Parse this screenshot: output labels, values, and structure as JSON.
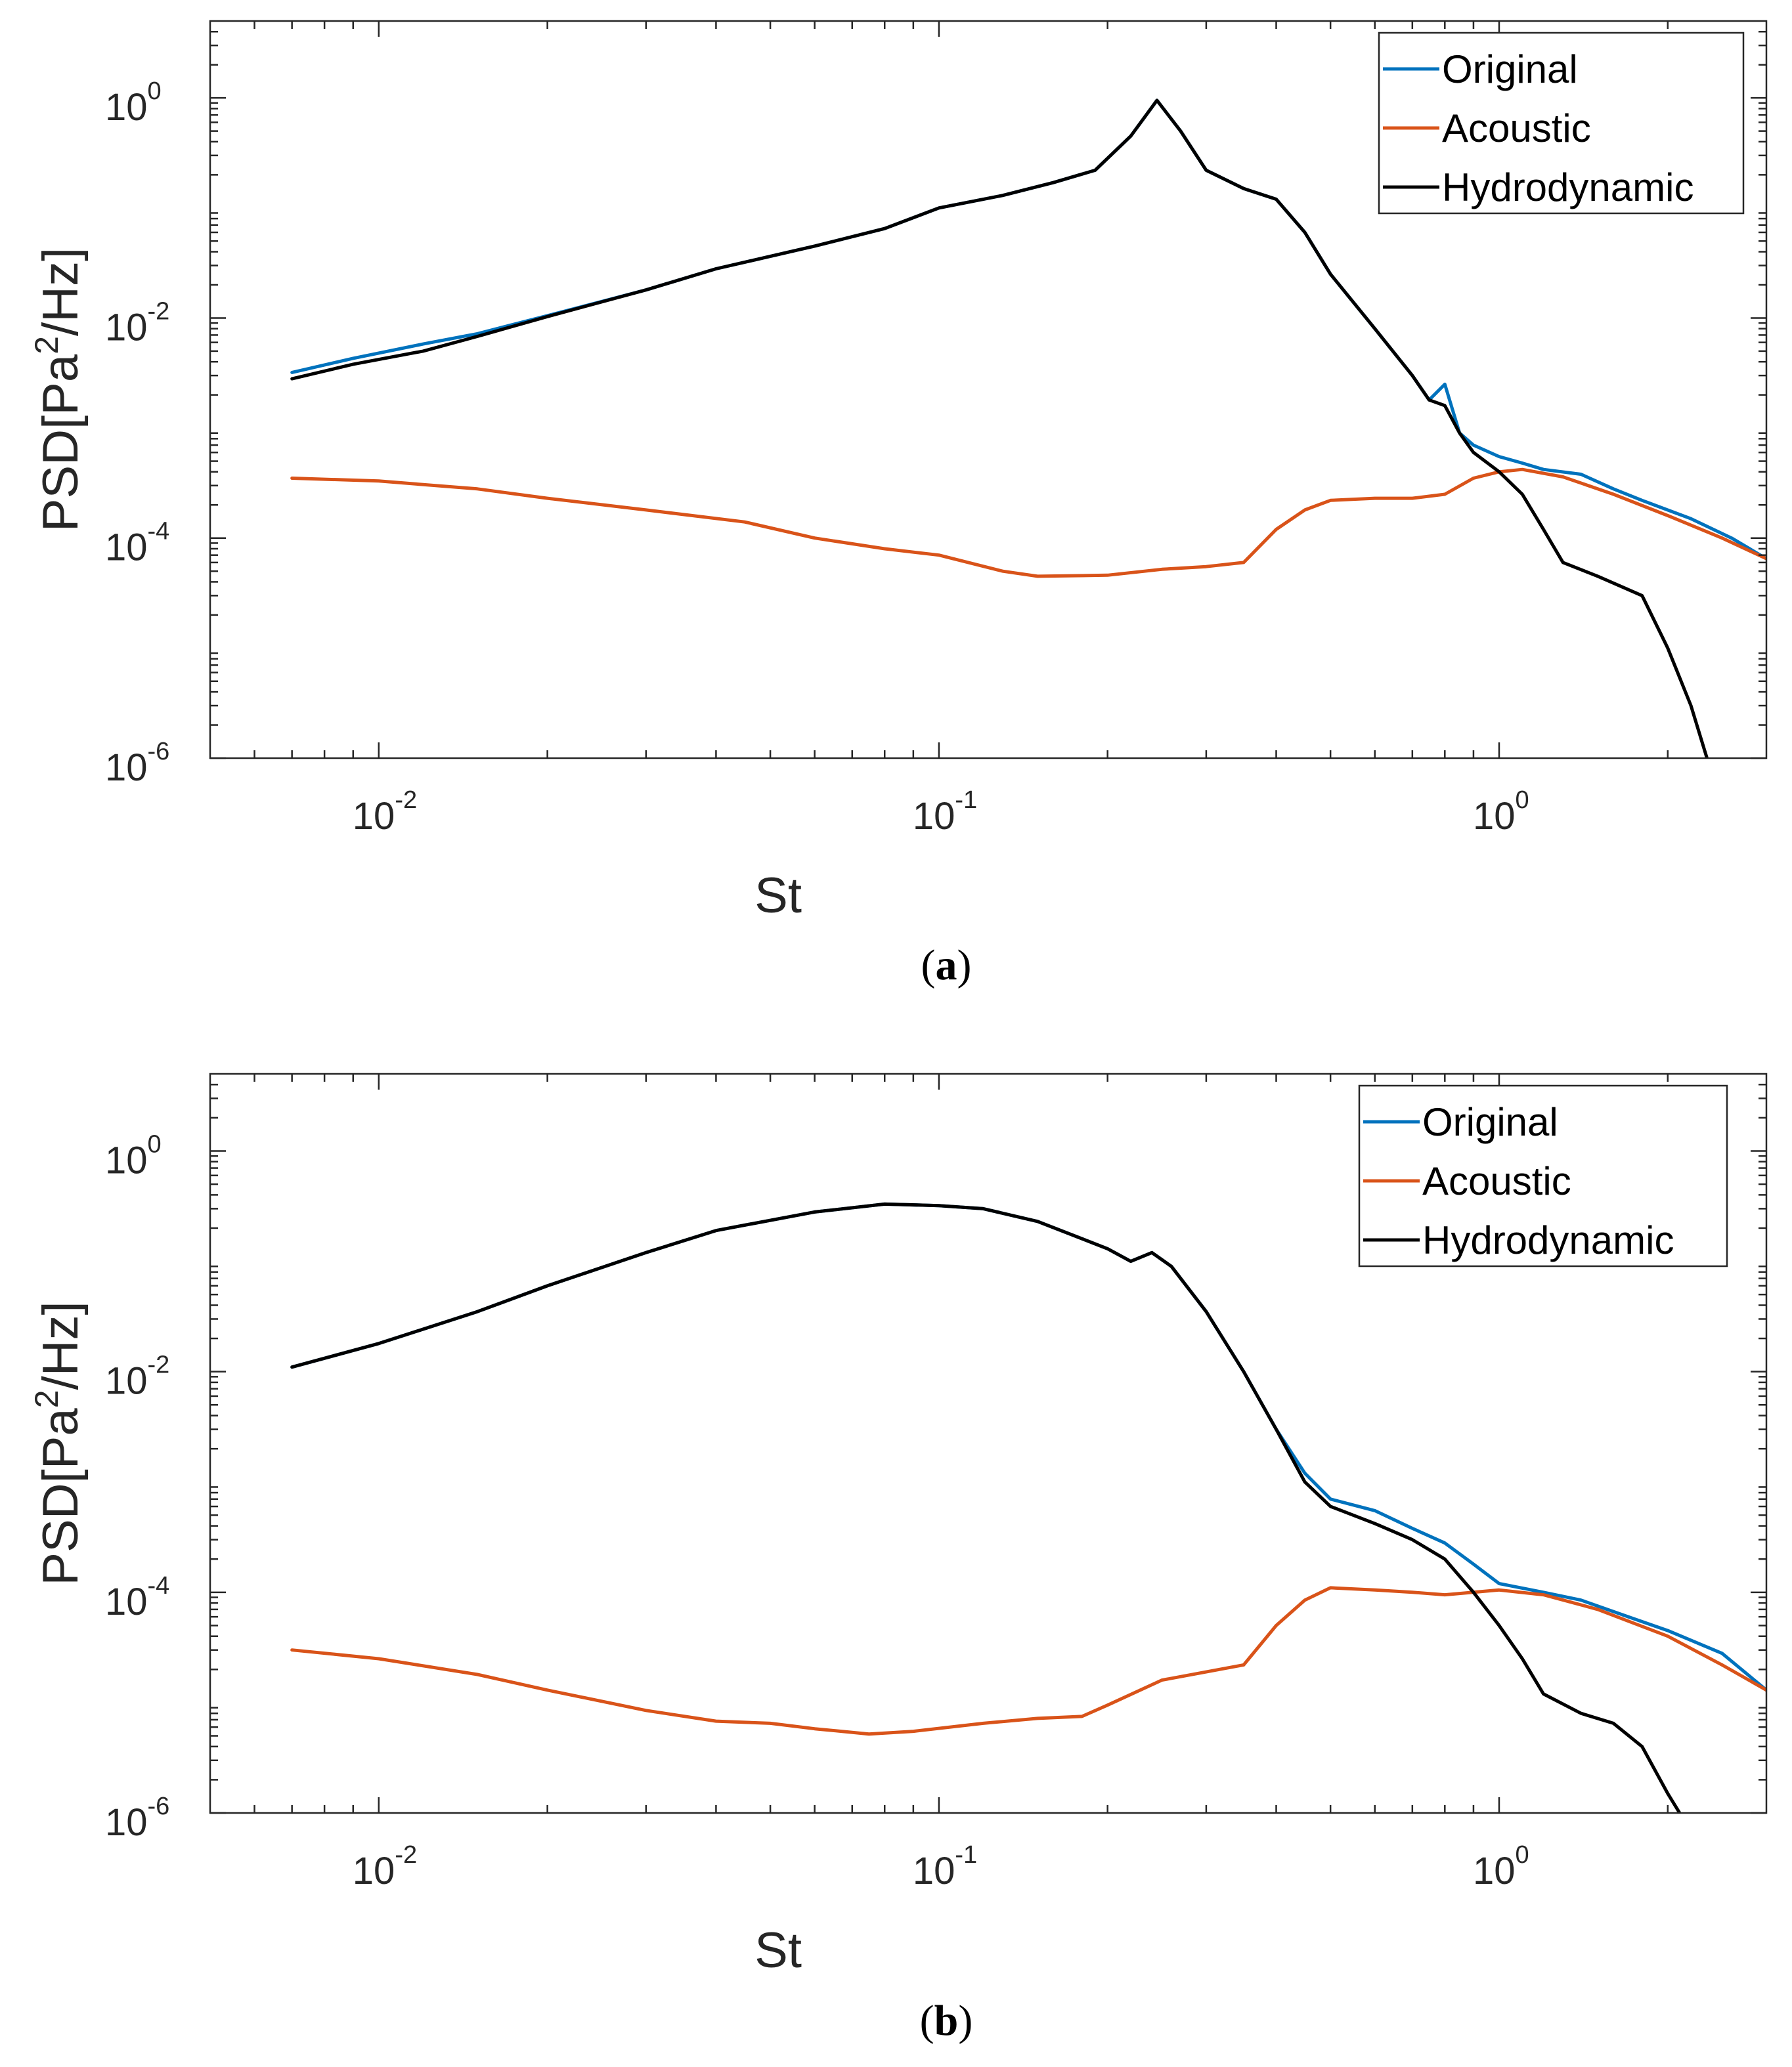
{
  "chart_data": [
    {
      "panel": "a",
      "type": "line",
      "caption_letter": "a",
      "xlabel": "St",
      "ylabel_base": "PSD[Pa",
      "ylabel_sup": "2",
      "ylabel_tail": "/Hz]",
      "xscale": "log",
      "yscale": "log",
      "xlim": [
        0.005,
        3.0
      ],
      "ylim": [
        1e-06,
        5
      ],
      "x_ticks": [
        {
          "value": 0.01,
          "base": "10",
          "exp": "-2"
        },
        {
          "value": 0.1,
          "base": "10",
          "exp": "-1"
        },
        {
          "value": 1,
          "base": "10",
          "exp": "0"
        }
      ],
      "y_ticks": [
        {
          "value": 1e-06,
          "base": "10",
          "exp": "-6"
        },
        {
          "value": 0.0001,
          "base": "10",
          "exp": "-4"
        },
        {
          "value": 0.01,
          "base": "10",
          "exp": "-2"
        },
        {
          "value": 1,
          "base": "10",
          "exp": "0"
        }
      ],
      "legend_position": "top-right",
      "series": [
        {
          "name": "Original",
          "color": "#0072BD",
          "points": [
            [
              0.007,
              0.0032
            ],
            [
              0.009,
              0.0043
            ],
            [
              0.012,
              0.0058
            ],
            [
              0.015,
              0.0072
            ],
            [
              0.02,
              0.0105
            ],
            [
              0.03,
              0.018
            ],
            [
              0.04,
              0.028
            ],
            [
              0.06,
              0.045
            ],
            [
              0.08,
              0.065
            ],
            [
              0.1,
              0.1
            ],
            [
              0.13,
              0.13
            ],
            [
              0.16,
              0.17
            ],
            [
              0.19,
              0.22
            ],
            [
              0.22,
              0.45
            ],
            [
              0.245,
              0.95
            ],
            [
              0.27,
              0.5
            ],
            [
              0.3,
              0.22
            ],
            [
              0.35,
              0.15
            ],
            [
              0.4,
              0.12
            ],
            [
              0.45,
              0.06
            ],
            [
              0.5,
              0.025
            ],
            [
              0.6,
              0.008
            ],
            [
              0.7,
              0.003
            ],
            [
              0.75,
              0.0018
            ],
            [
              0.8,
              0.0025
            ],
            [
              0.85,
              0.0009
            ],
            [
              0.9,
              0.0007
            ],
            [
              1.0,
              0.00055
            ],
            [
              1.1,
              0.00048
            ],
            [
              1.2,
              0.00042
            ],
            [
              1.4,
              0.00038
            ],
            [
              1.6,
              0.00028
            ],
            [
              1.8,
              0.00022
            ],
            [
              2.2,
              0.00015
            ],
            [
              2.6,
              0.0001
            ],
            [
              3.0,
              6.5e-05
            ]
          ]
        },
        {
          "name": "Acoustic",
          "color": "#D95319",
          "points": [
            [
              0.007,
              0.00035
            ],
            [
              0.01,
              0.00033
            ],
            [
              0.015,
              0.00028
            ],
            [
              0.02,
              0.00023
            ],
            [
              0.03,
              0.00018
            ],
            [
              0.045,
              0.00014
            ],
            [
              0.06,
              0.0001
            ],
            [
              0.08,
              8e-05
            ],
            [
              0.1,
              7e-05
            ],
            [
              0.13,
              5e-05
            ],
            [
              0.15,
              4.5e-05
            ],
            [
              0.2,
              4.6e-05
            ],
            [
              0.25,
              5.2e-05
            ],
            [
              0.3,
              5.5e-05
            ],
            [
              0.35,
              6e-05
            ],
            [
              0.4,
              0.00012
            ],
            [
              0.45,
              0.00018
            ],
            [
              0.5,
              0.00022
            ],
            [
              0.6,
              0.00023
            ],
            [
              0.7,
              0.00023
            ],
            [
              0.8,
              0.00025
            ],
            [
              0.9,
              0.00035
            ],
            [
              1.0,
              0.0004
            ],
            [
              1.1,
              0.00042
            ],
            [
              1.3,
              0.00036
            ],
            [
              1.6,
              0.00025
            ],
            [
              2.0,
              0.00016
            ],
            [
              2.5,
              0.0001
            ],
            [
              3.0,
              6.5e-05
            ]
          ]
        },
        {
          "name": "Hydrodynamic",
          "color": "#000000",
          "points": [
            [
              0.007,
              0.0028
            ],
            [
              0.009,
              0.0038
            ],
            [
              0.012,
              0.005
            ],
            [
              0.015,
              0.0068
            ],
            [
              0.02,
              0.0103
            ],
            [
              0.03,
              0.018
            ],
            [
              0.04,
              0.028
            ],
            [
              0.06,
              0.045
            ],
            [
              0.08,
              0.065
            ],
            [
              0.1,
              0.1
            ],
            [
              0.13,
              0.13
            ],
            [
              0.16,
              0.17
            ],
            [
              0.19,
              0.22
            ],
            [
              0.22,
              0.45
            ],
            [
              0.245,
              0.95
            ],
            [
              0.27,
              0.5
            ],
            [
              0.3,
              0.22
            ],
            [
              0.35,
              0.15
            ],
            [
              0.4,
              0.12
            ],
            [
              0.45,
              0.06
            ],
            [
              0.5,
              0.025
            ],
            [
              0.6,
              0.008
            ],
            [
              0.7,
              0.003
            ],
            [
              0.75,
              0.0018
            ],
            [
              0.8,
              0.0016
            ],
            [
              0.85,
              0.0009
            ],
            [
              0.9,
              0.0006
            ],
            [
              1.0,
              0.0004
            ],
            [
              1.1,
              0.00025
            ],
            [
              1.2,
              0.00012
            ],
            [
              1.3,
              6e-05
            ],
            [
              1.5,
              4.5e-05
            ],
            [
              1.8,
              3e-05
            ],
            [
              2.0,
              1e-05
            ],
            [
              2.2,
              3e-06
            ],
            [
              2.35,
              1e-06
            ]
          ]
        }
      ]
    },
    {
      "panel": "b",
      "type": "line",
      "caption_letter": "b",
      "xlabel": "St",
      "ylabel_base": "PSD[Pa",
      "ylabel_sup": "2",
      "ylabel_tail": "/Hz]",
      "xscale": "log",
      "yscale": "log",
      "xlim": [
        0.005,
        3.0
      ],
      "ylim": [
        1e-06,
        5
      ],
      "x_ticks": [
        {
          "value": 0.01,
          "base": "10",
          "exp": "-2"
        },
        {
          "value": 0.1,
          "base": "10",
          "exp": "-1"
        },
        {
          "value": 1,
          "base": "10",
          "exp": "0"
        }
      ],
      "y_ticks": [
        {
          "value": 1e-06,
          "base": "10",
          "exp": "-6"
        },
        {
          "value": 0.0001,
          "base": "10",
          "exp": "-4"
        },
        {
          "value": 0.01,
          "base": "10",
          "exp": "-2"
        },
        {
          "value": 1,
          "base": "10",
          "exp": "0"
        }
      ],
      "legend_position": "top-right",
      "series": [
        {
          "name": "Original",
          "color": "#0072BD",
          "points": [
            [
              0.007,
              0.011
            ],
            [
              0.01,
              0.018
            ],
            [
              0.015,
              0.035
            ],
            [
              0.02,
              0.06
            ],
            [
              0.03,
              0.12
            ],
            [
              0.04,
              0.19
            ],
            [
              0.06,
              0.28
            ],
            [
              0.08,
              0.33
            ],
            [
              0.1,
              0.32
            ],
            [
              0.12,
              0.3
            ],
            [
              0.15,
              0.23
            ],
            [
              0.2,
              0.13
            ],
            [
              0.22,
              0.1
            ],
            [
              0.24,
              0.12
            ],
            [
              0.26,
              0.09
            ],
            [
              0.3,
              0.035
            ],
            [
              0.35,
              0.01
            ],
            [
              0.4,
              0.003
            ],
            [
              0.45,
              0.0012
            ],
            [
              0.5,
              0.0007
            ],
            [
              0.6,
              0.00055
            ],
            [
              0.7,
              0.00038
            ],
            [
              0.8,
              0.00028
            ],
            [
              0.9,
              0.00018
            ],
            [
              1.0,
              0.00012
            ],
            [
              1.2,
              0.0001
            ],
            [
              1.4,
              8.5e-05
            ],
            [
              1.7,
              6e-05
            ],
            [
              2.0,
              4.5e-05
            ],
            [
              2.5,
              2.8e-05
            ],
            [
              3.0,
              1.3e-05
            ]
          ]
        },
        {
          "name": "Acoustic",
          "color": "#D95319",
          "points": [
            [
              0.007,
              3e-05
            ],
            [
              0.01,
              2.5e-05
            ],
            [
              0.015,
              1.8e-05
            ],
            [
              0.02,
              1.3e-05
            ],
            [
              0.03,
              8.5e-06
            ],
            [
              0.04,
              6.8e-06
            ],
            [
              0.05,
              6.5e-06
            ],
            [
              0.06,
              5.8e-06
            ],
            [
              0.075,
              5.2e-06
            ],
            [
              0.09,
              5.5e-06
            ],
            [
              0.12,
              6.5e-06
            ],
            [
              0.15,
              7.2e-06
            ],
            [
              0.18,
              7.5e-06
            ],
            [
              0.2,
              9.5e-06
            ],
            [
              0.25,
              1.6e-05
            ],
            [
              0.3,
              1.9e-05
            ],
            [
              0.35,
              2.2e-05
            ],
            [
              0.4,
              5e-05
            ],
            [
              0.45,
              8.5e-05
            ],
            [
              0.5,
              0.00011
            ],
            [
              0.6,
              0.000105
            ],
            [
              0.7,
              0.0001
            ],
            [
              0.8,
              9.5e-05
            ],
            [
              0.9,
              0.0001
            ],
            [
              1.0,
              0.000105
            ],
            [
              1.2,
              9.5e-05
            ],
            [
              1.5,
              7e-05
            ],
            [
              2.0,
              4e-05
            ],
            [
              2.5,
              2.2e-05
            ],
            [
              3.0,
              1.3e-05
            ]
          ]
        },
        {
          "name": "Hydrodynamic",
          "color": "#000000",
          "points": [
            [
              0.007,
              0.011
            ],
            [
              0.01,
              0.018
            ],
            [
              0.015,
              0.035
            ],
            [
              0.02,
              0.06
            ],
            [
              0.03,
              0.12
            ],
            [
              0.04,
              0.19
            ],
            [
              0.06,
              0.28
            ],
            [
              0.08,
              0.33
            ],
            [
              0.1,
              0.32
            ],
            [
              0.12,
              0.3
            ],
            [
              0.15,
              0.23
            ],
            [
              0.2,
              0.13
            ],
            [
              0.22,
              0.1
            ],
            [
              0.24,
              0.12
            ],
            [
              0.26,
              0.09
            ],
            [
              0.3,
              0.035
            ],
            [
              0.35,
              0.01
            ],
            [
              0.4,
              0.003
            ],
            [
              0.45,
              0.001
            ],
            [
              0.5,
              0.0006
            ],
            [
              0.6,
              0.00042
            ],
            [
              0.7,
              0.0003
            ],
            [
              0.8,
              0.0002
            ],
            [
              0.9,
              0.0001
            ],
            [
              1.0,
              5e-05
            ],
            [
              1.1,
              2.5e-05
            ],
            [
              1.2,
              1.2e-05
            ],
            [
              1.4,
              8e-06
            ],
            [
              1.6,
              6.5e-06
            ],
            [
              1.8,
              4e-06
            ],
            [
              2.0,
              1.5e-06
            ],
            [
              2.1,
              1e-06
            ]
          ]
        }
      ]
    }
  ]
}
